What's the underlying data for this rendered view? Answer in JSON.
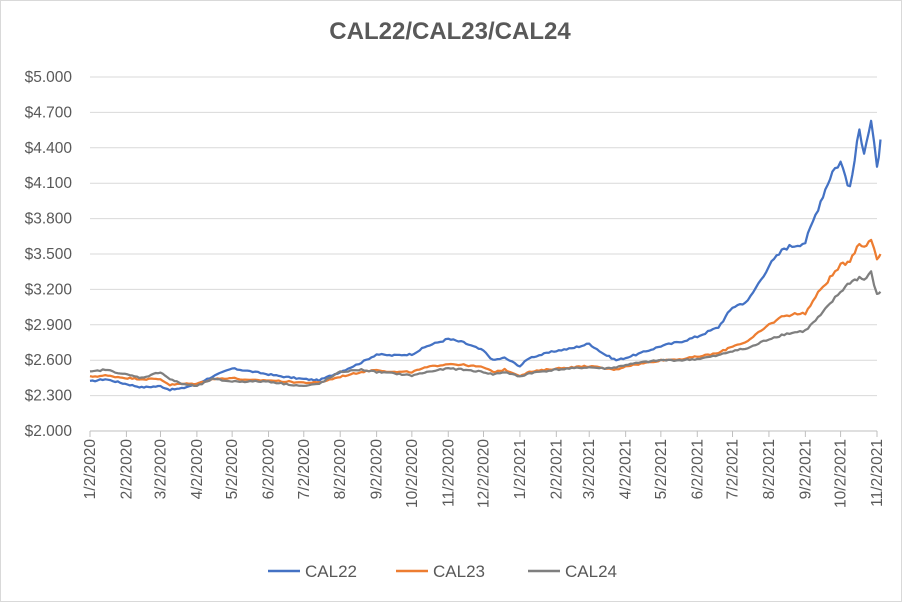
{
  "chart_data": {
    "type": "line",
    "title": "CAL22/CAL23/CAL24",
    "xlabel": "",
    "ylabel": "",
    "ylim": [
      2.0,
      5.0
    ],
    "y_ticks": [
      "$2.000",
      "$2.300",
      "$2.600",
      "$2.900",
      "$3.200",
      "$3.500",
      "$3.800",
      "$4.100",
      "$4.400",
      "$4.700",
      "$5.000"
    ],
    "x_ticks": [
      "1/2/2020",
      "2/2/2020",
      "3/2/2020",
      "4/2/2020",
      "5/2/2020",
      "6/2/2020",
      "7/2/2020",
      "8/2/2020",
      "9/2/2020",
      "10/2/2020",
      "11/2/2020",
      "12/2/2020",
      "1/2/2021",
      "2/2/2021",
      "3/2/2021",
      "4/2/2021",
      "5/2/2021",
      "6/2/2021",
      "7/2/2021",
      "8/2/2021",
      "9/2/2021",
      "10/2/2021",
      "11/2/2021"
    ],
    "x_dates": [
      "2020-01-02",
      "2020-02-02",
      "2020-03-02",
      "2020-04-02",
      "2020-05-02",
      "2020-06-02",
      "2020-07-02",
      "2020-08-02",
      "2020-09-02",
      "2020-10-02",
      "2020-11-02",
      "2020-12-02",
      "2021-01-02",
      "2021-02-02",
      "2021-03-02",
      "2021-04-02",
      "2021-05-02",
      "2021-06-02",
      "2021-07-02",
      "2021-08-02",
      "2021-09-02",
      "2021-10-02",
      "2021-11-02"
    ],
    "grid": true,
    "legend_position": "bottom",
    "series": [
      {
        "name": "CAL22",
        "color": "#4472c4",
        "points": [
          [
            "2020-01-02",
            2.42
          ],
          [
            "2020-01-15",
            2.44
          ],
          [
            "2020-02-01",
            2.4
          ],
          [
            "2020-02-15",
            2.37
          ],
          [
            "2020-03-02",
            2.38
          ],
          [
            "2020-03-10",
            2.35
          ],
          [
            "2020-03-20",
            2.36
          ],
          [
            "2020-04-02",
            2.4
          ],
          [
            "2020-04-15",
            2.46
          ],
          [
            "2020-05-02",
            2.53
          ],
          [
            "2020-05-15",
            2.51
          ],
          [
            "2020-06-02",
            2.48
          ],
          [
            "2020-06-15",
            2.46
          ],
          [
            "2020-07-02",
            2.44
          ],
          [
            "2020-07-15",
            2.43
          ],
          [
            "2020-08-02",
            2.5
          ],
          [
            "2020-08-20",
            2.58
          ],
          [
            "2020-09-02",
            2.65
          ],
          [
            "2020-09-15",
            2.64
          ],
          [
            "2020-10-02",
            2.65
          ],
          [
            "2020-10-15",
            2.72
          ],
          [
            "2020-11-02",
            2.78
          ],
          [
            "2020-11-15",
            2.75
          ],
          [
            "2020-12-02",
            2.68
          ],
          [
            "2020-12-10",
            2.6
          ],
          [
            "2020-12-20",
            2.62
          ],
          [
            "2021-01-02",
            2.55
          ],
          [
            "2021-01-10",
            2.62
          ],
          [
            "2021-02-02",
            2.68
          ],
          [
            "2021-02-15",
            2.7
          ],
          [
            "2021-03-02",
            2.74
          ],
          [
            "2021-03-15",
            2.65
          ],
          [
            "2021-03-25",
            2.6
          ],
          [
            "2021-04-02",
            2.62
          ],
          [
            "2021-04-15",
            2.66
          ],
          [
            "2021-05-02",
            2.72
          ],
          [
            "2021-05-20",
            2.76
          ],
          [
            "2021-06-02",
            2.8
          ],
          [
            "2021-06-20",
            2.88
          ],
          [
            "2021-07-02",
            3.05
          ],
          [
            "2021-07-15",
            3.1
          ],
          [
            "2021-08-02",
            3.4
          ],
          [
            "2021-08-15",
            3.55
          ],
          [
            "2021-09-02",
            3.6
          ],
          [
            "2021-09-15",
            3.95
          ],
          [
            "2021-09-25",
            4.2
          ],
          [
            "2021-10-02",
            4.28
          ],
          [
            "2021-10-10",
            4.05
          ],
          [
            "2021-10-18",
            4.55
          ],
          [
            "2021-10-22",
            4.38
          ],
          [
            "2021-10-28",
            4.62
          ],
          [
            "2021-11-02",
            4.22
          ],
          [
            "2021-11-05",
            4.47
          ]
        ]
      },
      {
        "name": "CAL23",
        "color": "#ed7d31",
        "points": [
          [
            "2020-01-02",
            2.46
          ],
          [
            "2020-01-15",
            2.47
          ],
          [
            "2020-02-01",
            2.45
          ],
          [
            "2020-02-15",
            2.44
          ],
          [
            "2020-03-02",
            2.44
          ],
          [
            "2020-03-10",
            2.39
          ],
          [
            "2020-03-20",
            2.4
          ],
          [
            "2020-04-02",
            2.4
          ],
          [
            "2020-04-15",
            2.44
          ],
          [
            "2020-05-02",
            2.45
          ],
          [
            "2020-05-15",
            2.43
          ],
          [
            "2020-06-02",
            2.43
          ],
          [
            "2020-06-15",
            2.42
          ],
          [
            "2020-07-02",
            2.41
          ],
          [
            "2020-07-15",
            2.41
          ],
          [
            "2020-08-02",
            2.46
          ],
          [
            "2020-08-20",
            2.5
          ],
          [
            "2020-09-02",
            2.52
          ],
          [
            "2020-09-15",
            2.5
          ],
          [
            "2020-10-02",
            2.5
          ],
          [
            "2020-10-15",
            2.54
          ],
          [
            "2020-11-02",
            2.57
          ],
          [
            "2020-11-15",
            2.56
          ],
          [
            "2020-12-02",
            2.54
          ],
          [
            "2020-12-10",
            2.5
          ],
          [
            "2020-12-20",
            2.52
          ],
          [
            "2021-01-02",
            2.47
          ],
          [
            "2021-01-10",
            2.5
          ],
          [
            "2021-02-02",
            2.53
          ],
          [
            "2021-02-15",
            2.54
          ],
          [
            "2021-03-02",
            2.55
          ],
          [
            "2021-03-15",
            2.53
          ],
          [
            "2021-03-25",
            2.52
          ],
          [
            "2021-04-02",
            2.55
          ],
          [
            "2021-04-15",
            2.57
          ],
          [
            "2021-05-02",
            2.6
          ],
          [
            "2021-05-20",
            2.61
          ],
          [
            "2021-06-02",
            2.63
          ],
          [
            "2021-06-20",
            2.66
          ],
          [
            "2021-07-02",
            2.72
          ],
          [
            "2021-07-15",
            2.76
          ],
          [
            "2021-08-02",
            2.9
          ],
          [
            "2021-08-15",
            2.98
          ],
          [
            "2021-09-02",
            3.0
          ],
          [
            "2021-09-15",
            3.2
          ],
          [
            "2021-09-25",
            3.32
          ],
          [
            "2021-10-02",
            3.4
          ],
          [
            "2021-10-10",
            3.45
          ],
          [
            "2021-10-18",
            3.6
          ],
          [
            "2021-10-22",
            3.55
          ],
          [
            "2021-10-28",
            3.63
          ],
          [
            "2021-11-02",
            3.46
          ],
          [
            "2021-11-05",
            3.5
          ]
        ]
      },
      {
        "name": "CAL24",
        "color": "#7f7f7f",
        "points": [
          [
            "2020-01-02",
            2.5
          ],
          [
            "2020-01-15",
            2.52
          ],
          [
            "2020-02-01",
            2.48
          ],
          [
            "2020-02-15",
            2.45
          ],
          [
            "2020-03-02",
            2.5
          ],
          [
            "2020-03-10",
            2.44
          ],
          [
            "2020-03-20",
            2.4
          ],
          [
            "2020-04-02",
            2.38
          ],
          [
            "2020-04-15",
            2.44
          ],
          [
            "2020-05-02",
            2.42
          ],
          [
            "2020-05-15",
            2.42
          ],
          [
            "2020-06-02",
            2.42
          ],
          [
            "2020-06-15",
            2.4
          ],
          [
            "2020-07-02",
            2.38
          ],
          [
            "2020-07-15",
            2.4
          ],
          [
            "2020-08-02",
            2.5
          ],
          [
            "2020-08-20",
            2.52
          ],
          [
            "2020-09-02",
            2.5
          ],
          [
            "2020-09-15",
            2.49
          ],
          [
            "2020-10-02",
            2.47
          ],
          [
            "2020-10-15",
            2.5
          ],
          [
            "2020-11-02",
            2.53
          ],
          [
            "2020-11-15",
            2.52
          ],
          [
            "2020-12-02",
            2.5
          ],
          [
            "2020-12-10",
            2.48
          ],
          [
            "2020-12-20",
            2.5
          ],
          [
            "2021-01-02",
            2.46
          ],
          [
            "2021-01-10",
            2.49
          ],
          [
            "2021-02-02",
            2.52
          ],
          [
            "2021-02-15",
            2.53
          ],
          [
            "2021-03-02",
            2.54
          ],
          [
            "2021-03-15",
            2.53
          ],
          [
            "2021-03-25",
            2.54
          ],
          [
            "2021-04-02",
            2.56
          ],
          [
            "2021-04-15",
            2.58
          ],
          [
            "2021-05-02",
            2.6
          ],
          [
            "2021-05-20",
            2.6
          ],
          [
            "2021-06-02",
            2.61
          ],
          [
            "2021-06-20",
            2.64
          ],
          [
            "2021-07-02",
            2.68
          ],
          [
            "2021-07-15",
            2.7
          ],
          [
            "2021-08-02",
            2.78
          ],
          [
            "2021-08-15",
            2.82
          ],
          [
            "2021-09-02",
            2.85
          ],
          [
            "2021-09-15",
            2.98
          ],
          [
            "2021-09-25",
            3.1
          ],
          [
            "2021-10-02",
            3.18
          ],
          [
            "2021-10-10",
            3.26
          ],
          [
            "2021-10-18",
            3.3
          ],
          [
            "2021-10-22",
            3.28
          ],
          [
            "2021-10-28",
            3.34
          ],
          [
            "2021-11-02",
            3.15
          ],
          [
            "2021-11-05",
            3.18
          ]
        ]
      }
    ]
  }
}
